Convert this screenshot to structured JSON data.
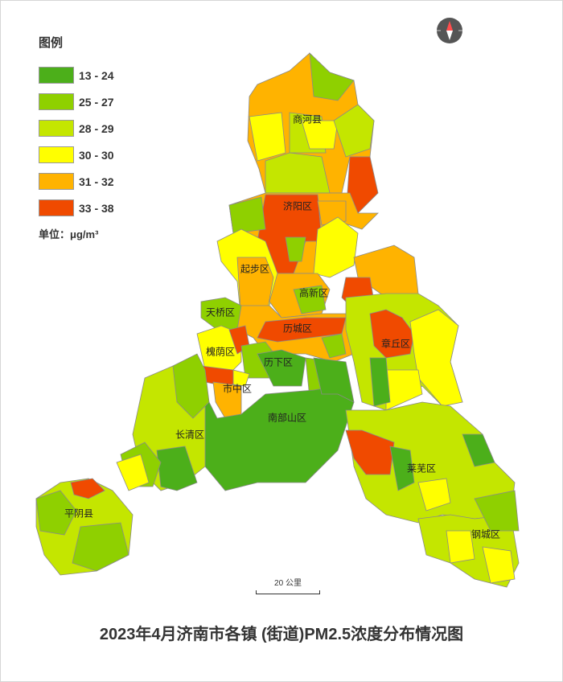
{
  "legend": {
    "title": "图例",
    "items": [
      {
        "label": "13 - 24",
        "color": "#4caf1a"
      },
      {
        "label": "25 - 27",
        "color": "#8fd000"
      },
      {
        "label": "28 - 29",
        "color": "#c4e600"
      },
      {
        "label": "30 - 30",
        "color": "#ffff00"
      },
      {
        "label": "31 - 32",
        "color": "#ffb300"
      },
      {
        "label": "33 - 38",
        "color": "#f04a00"
      }
    ],
    "unit_label": "单位：μg/m³"
  },
  "districts": {
    "shanghe": "商河县",
    "jiyang": "济阳区",
    "qibu": "起步区",
    "gaoxin": "高新区",
    "tianqiao": "天桥区",
    "licheng": "历城区",
    "zhangqiu": "章丘区",
    "huaiyin": "槐荫区",
    "lixia": "历下区",
    "shizhong": "市中区",
    "nanbu": "南部山区",
    "changqing": "长清区",
    "pingyin": "平阴县",
    "laiwu": "莱芜区",
    "gangcheng": "钢城区"
  },
  "scale_label": "20 公里",
  "compass": "north-arrow-icon",
  "title": "2023年4月济南市各镇 (街道)PM2.5浓度分布情况图"
}
